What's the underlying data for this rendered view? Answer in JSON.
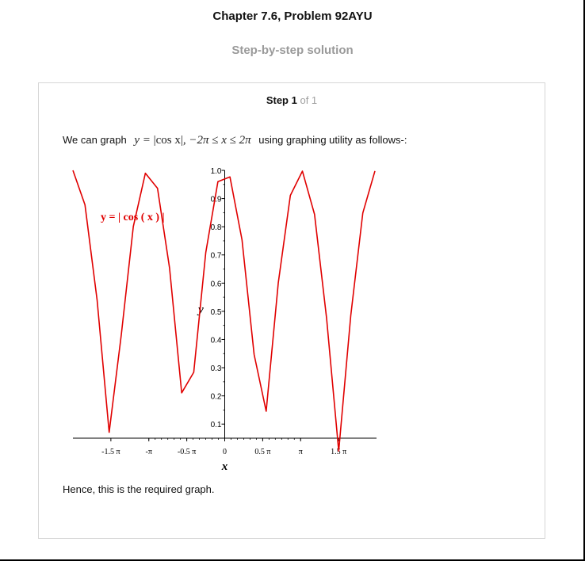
{
  "header": {
    "chapter_title": "Chapter 7.6, Problem 92AYU",
    "subtitle": "Step-by-step solution"
  },
  "step": {
    "label": "Step 1",
    "of_text": "of 1",
    "intro_prefix": "We can graph",
    "intro_math_lhs": "y =",
    "intro_math_abs": "|cos x|",
    "intro_math_domain": ", −2π ≤ x ≤ 2π",
    "intro_suffix": "using graphing utility as follows-:",
    "conclusion": "Hence, this is the required graph."
  },
  "chart_data": {
    "type": "line",
    "title": "",
    "xlabel": "x",
    "ylabel": "y",
    "annotation": "y = | cos ( x ) |",
    "xlim": [
      -6.2832,
      6.2832
    ],
    "ylim": [
      0.05,
      1.0
    ],
    "x_tick_labels": [
      "-1.5 π",
      "-π",
      "-0.5 π",
      "0",
      "0.5 π",
      "π",
      "1.5 π"
    ],
    "x_tick_values": [
      -4.7124,
      -3.1416,
      -1.5708,
      0,
      1.5708,
      3.1416,
      4.7124
    ],
    "y_tick_labels": [
      "0.1",
      "0.2",
      "0.3",
      "0.4",
      "0.5",
      "0.6",
      "0.7",
      "0.8",
      "0.9",
      "1.0"
    ],
    "y_tick_values": [
      0.1,
      0.2,
      0.3,
      0.4,
      0.5,
      0.6,
      0.7,
      0.8,
      0.9,
      1.0
    ],
    "grid": false,
    "line_color": "#e00000",
    "series": [
      {
        "name": "y = | cos ( x ) |",
        "x": [
          -6.2832,
          -5.7832,
          -5.2832,
          -4.7832,
          -4.2832,
          -3.7832,
          -3.2832,
          -2.7832,
          -2.2832,
          -1.7832,
          -1.2832,
          -0.7832,
          -0.2832,
          0.2168,
          0.7168,
          1.2168,
          1.7168,
          2.2168,
          2.7168,
          3.2168,
          3.7168,
          4.2168,
          4.7168,
          5.2168,
          5.7168,
          6.2168
        ],
        "y": [
          1.0,
          0.8776,
          0.5403,
          0.0707,
          0.4161,
          0.8011,
          0.99,
          0.9365,
          0.6536,
          0.2108,
          0.2837,
          0.7087,
          0.9602,
          0.9766,
          0.7539,
          0.3466,
          0.1455,
          0.602,
          0.9111,
          0.9972,
          0.8439,
          0.4755,
          0.0042,
          0.4848,
          0.8488,
          0.9978
        ]
      }
    ]
  }
}
